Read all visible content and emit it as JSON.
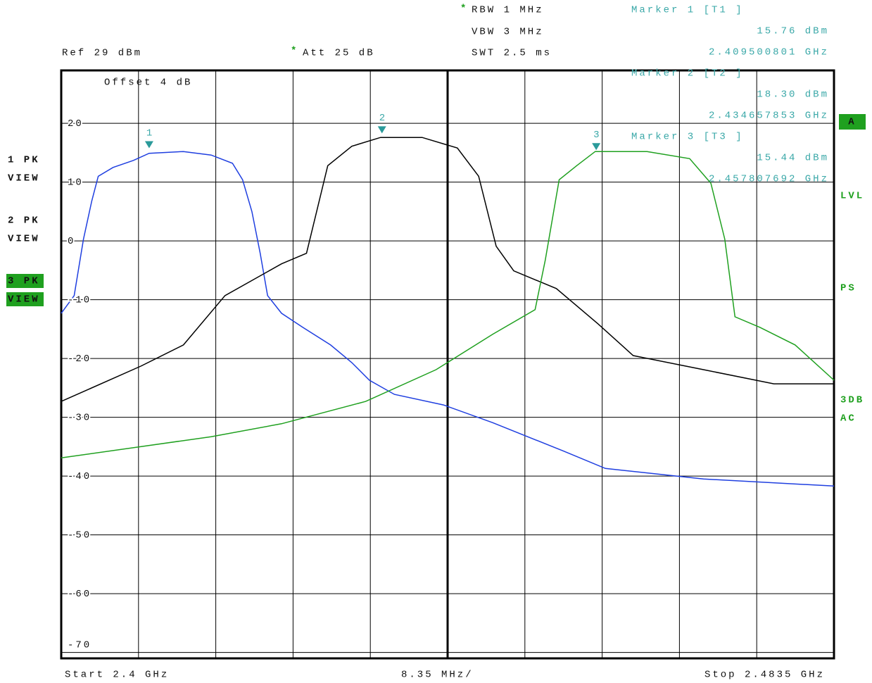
{
  "chart_data": {
    "type": "line",
    "header": {
      "rbw": "RBW  1 MHz",
      "vbw": "VBW  3 MHz",
      "swt": "SWT  2.5 ms",
      "ref": "Ref   29 dBm",
      "att": "Att   25 dB",
      "offset": "Offset   4 dB",
      "star": "*"
    },
    "footer": {
      "start": "Start  2.4 GHz",
      "span_div": "8.35 MHz/",
      "stop": "Stop  2.4835 GHz"
    },
    "side_labels": [
      "A",
      "LVL",
      "PS",
      "3DB",
      "AC"
    ],
    "xlim": [
      2.4,
      2.4835
    ],
    "xticks": [
      2.4,
      2.40835,
      2.4167,
      2.42505,
      2.4334,
      2.44175,
      2.4501,
      2.45845,
      2.4668,
      2.47515,
      2.4835
    ],
    "ylim": [
      -71,
      29
    ],
    "yticks": [
      20,
      10,
      0,
      -10,
      -20,
      -30,
      -40,
      -50,
      -60,
      -70
    ],
    "grid": true,
    "series": [
      {
        "name": "1 PK",
        "mode": "VIEW",
        "color": "#1f3fe0",
        "x": [
          2.4,
          2.4014,
          2.4024,
          2.4033,
          2.404,
          2.4056,
          2.4078,
          2.4095,
          2.4132,
          2.4162,
          2.4185,
          2.4196,
          2.4206,
          2.4215,
          2.4223,
          2.4238,
          2.4261,
          2.4291,
          2.4314,
          2.4333,
          2.436,
          2.4413,
          2.4466,
          2.4542,
          2.4588,
          2.4694,
          2.4835
        ],
        "values": [
          -12.3,
          -9.3,
          0.3,
          6.8,
          11.0,
          12.5,
          13.7,
          14.9,
          15.2,
          14.6,
          13.2,
          10.4,
          5.0,
          -2.1,
          -9.3,
          -12.3,
          -14.7,
          -17.7,
          -20.7,
          -23.7,
          -26.1,
          -27.9,
          -30.9,
          -35.7,
          -38.7,
          -40.5,
          -41.7
        ]
      },
      {
        "name": "2 PK",
        "mode": "VIEW",
        "color": "#000000",
        "x": [
          2.4,
          2.4086,
          2.4132,
          2.4177,
          2.4238,
          2.4265,
          2.4276,
          2.4288,
          2.4314,
          2.4345,
          2.439,
          2.4428,
          2.4451,
          2.447,
          2.4489,
          2.4535,
          2.458,
          2.4618,
          2.4694,
          2.477,
          2.4835
        ],
        "values": [
          -27.3,
          -21.3,
          -17.7,
          -9.3,
          -3.9,
          -2.1,
          5.0,
          12.8,
          16.1,
          17.6,
          17.6,
          15.8,
          11.0,
          -0.9,
          -5.1,
          -8.1,
          -14.1,
          -19.5,
          -21.9,
          -24.3,
          -24.3
        ]
      },
      {
        "name": "3 PK",
        "mode": "VIEW",
        "color": "#1fa01f",
        "x": [
          2.4,
          2.4162,
          2.4238,
          2.4329,
          2.4405,
          2.4466,
          2.4512,
          2.4523,
          2.4538,
          2.4557,
          2.4577,
          2.4633,
          2.4679,
          2.4702,
          2.4717,
          2.4728,
          2.4755,
          2.4793,
          2.4835
        ],
        "values": [
          -36.9,
          -33.3,
          -31.1,
          -27.3,
          -21.9,
          -15.9,
          -11.7,
          -3.3,
          10.4,
          12.8,
          15.2,
          15.2,
          14.0,
          9.8,
          0.3,
          -12.9,
          -14.7,
          -17.7,
          -23.7
        ]
      }
    ],
    "markers": [
      {
        "name": "Marker 1 [T1 ]",
        "number": "1",
        "x": 2.409500801,
        "value": 15.76,
        "value_label": "15.76 dBm",
        "x_label": "2.409500801 GHz"
      },
      {
        "name": "Marker 2 [T2 ]",
        "number": "2",
        "x": 2.434657853,
        "value": 18.3,
        "value_label": "18.30 dBm",
        "x_label": "2.434657853 GHz"
      },
      {
        "name": "Marker 3 [T3 ]",
        "number": "3",
        "x": 2.457807692,
        "value": 15.44,
        "value_label": "15.44 dBm",
        "x_label": "2.457807692 GHz"
      }
    ]
  }
}
